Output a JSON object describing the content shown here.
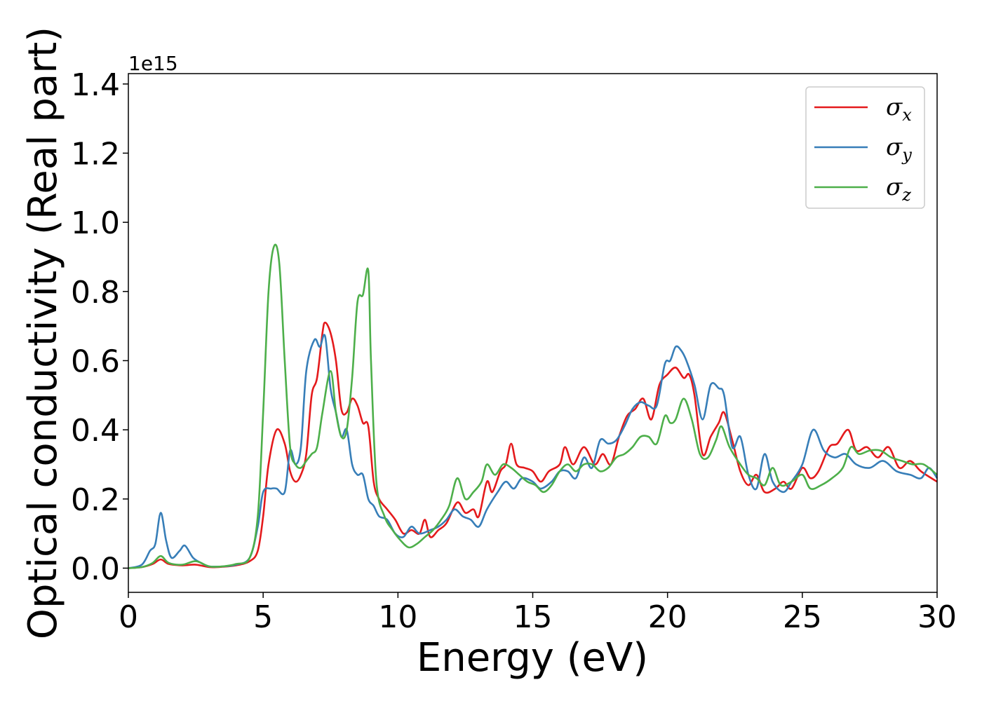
{
  "chart_data": {
    "type": "line",
    "title": "",
    "xlabel": "Energy (eV)",
    "ylabel": "Optical conductivity (Real part)",
    "y_offset_label": "1e15",
    "xlim": [
      0,
      30
    ],
    "ylim": [
      -0.07,
      1.43
    ],
    "xticks": [
      0,
      5,
      10,
      15,
      20,
      25,
      30
    ],
    "xtick_labels": [
      "0",
      "5",
      "10",
      "15",
      "20",
      "25",
      "30"
    ],
    "yticks": [
      0.0,
      0.2,
      0.4,
      0.6,
      0.8,
      1.0,
      1.2,
      1.4
    ],
    "ytick_labels": [
      "0.0",
      "0.2",
      "0.4",
      "0.6",
      "0.8",
      "1.0",
      "1.2",
      "1.4"
    ],
    "grid": false,
    "legend_position": "top-right",
    "series": [
      {
        "name": "σ_x",
        "symbol": "σ",
        "sub": "x",
        "color": "#e41a1c",
        "points": [
          [
            0,
            0
          ],
          [
            0.5,
            0.003
          ],
          [
            0.9,
            0.012
          ],
          [
            1.2,
            0.025
          ],
          [
            1.5,
            0.012
          ],
          [
            2,
            0.008
          ],
          [
            2.5,
            0.01
          ],
          [
            3,
            0.003
          ],
          [
            3.5,
            0.004
          ],
          [
            4,
            0.008
          ],
          [
            4.5,
            0.02
          ],
          [
            4.8,
            0.05
          ],
          [
            5,
            0.15
          ],
          [
            5.2,
            0.3
          ],
          [
            5.5,
            0.4
          ],
          [
            5.8,
            0.36
          ],
          [
            6,
            0.28
          ],
          [
            6.2,
            0.25
          ],
          [
            6.4,
            0.27
          ],
          [
            6.6,
            0.33
          ],
          [
            6.8,
            0.5
          ],
          [
            7,
            0.55
          ],
          [
            7.2,
            0.68
          ],
          [
            7.3,
            0.71
          ],
          [
            7.5,
            0.68
          ],
          [
            7.7,
            0.6
          ],
          [
            7.9,
            0.46
          ],
          [
            8.1,
            0.45
          ],
          [
            8.3,
            0.49
          ],
          [
            8.5,
            0.47
          ],
          [
            8.7,
            0.42
          ],
          [
            8.9,
            0.41
          ],
          [
            9.1,
            0.25
          ],
          [
            9.3,
            0.2
          ],
          [
            9.6,
            0.17
          ],
          [
            9.9,
            0.14
          ],
          [
            10.2,
            0.1
          ],
          [
            10.5,
            0.11
          ],
          [
            10.8,
            0.1
          ],
          [
            11.0,
            0.14
          ],
          [
            11.2,
            0.09
          ],
          [
            11.5,
            0.11
          ],
          [
            11.8,
            0.13
          ],
          [
            12.2,
            0.19
          ],
          [
            12.5,
            0.16
          ],
          [
            12.8,
            0.17
          ],
          [
            13.0,
            0.15
          ],
          [
            13.3,
            0.25
          ],
          [
            13.5,
            0.22
          ],
          [
            13.8,
            0.28
          ],
          [
            14.0,
            0.3
          ],
          [
            14.2,
            0.36
          ],
          [
            14.4,
            0.3
          ],
          [
            14.7,
            0.29
          ],
          [
            15.0,
            0.28
          ],
          [
            15.3,
            0.25
          ],
          [
            15.6,
            0.28
          ],
          [
            16.0,
            0.3
          ],
          [
            16.2,
            0.35
          ],
          [
            16.5,
            0.3
          ],
          [
            16.9,
            0.35
          ],
          [
            17.3,
            0.3
          ],
          [
            17.6,
            0.33
          ],
          [
            17.9,
            0.3
          ],
          [
            18.2,
            0.38
          ],
          [
            18.5,
            0.44
          ],
          [
            18.8,
            0.46
          ],
          [
            19.1,
            0.49
          ],
          [
            19.4,
            0.43
          ],
          [
            19.7,
            0.53
          ],
          [
            20.0,
            0.56
          ],
          [
            20.3,
            0.58
          ],
          [
            20.6,
            0.55
          ],
          [
            20.8,
            0.56
          ],
          [
            21.0,
            0.5
          ],
          [
            21.3,
            0.33
          ],
          [
            21.6,
            0.38
          ],
          [
            21.9,
            0.42
          ],
          [
            22.1,
            0.45
          ],
          [
            22.4,
            0.37
          ],
          [
            22.7,
            0.28
          ],
          [
            23.0,
            0.24
          ],
          [
            23.3,
            0.27
          ],
          [
            23.6,
            0.22
          ],
          [
            24.0,
            0.23
          ],
          [
            24.3,
            0.25
          ],
          [
            24.6,
            0.23
          ],
          [
            25.0,
            0.29
          ],
          [
            25.3,
            0.26
          ],
          [
            25.6,
            0.28
          ],
          [
            26.0,
            0.35
          ],
          [
            26.3,
            0.36
          ],
          [
            26.7,
            0.4
          ],
          [
            27.0,
            0.34
          ],
          [
            27.4,
            0.35
          ],
          [
            27.8,
            0.32
          ],
          [
            28.2,
            0.35
          ],
          [
            28.6,
            0.29
          ],
          [
            29.0,
            0.31
          ],
          [
            29.4,
            0.28
          ],
          [
            30.0,
            0.25
          ]
        ]
      },
      {
        "name": "σ_y",
        "symbol": "σ",
        "sub": "y",
        "color": "#377eb8",
        "points": [
          [
            0,
            0
          ],
          [
            0.5,
            0.01
          ],
          [
            0.8,
            0.05
          ],
          [
            1.0,
            0.07
          ],
          [
            1.2,
            0.16
          ],
          [
            1.4,
            0.08
          ],
          [
            1.6,
            0.03
          ],
          [
            1.9,
            0.05
          ],
          [
            2.1,
            0.065
          ],
          [
            2.4,
            0.03
          ],
          [
            2.7,
            0.015
          ],
          [
            3.0,
            0.005
          ],
          [
            3.5,
            0.005
          ],
          [
            4.0,
            0.01
          ],
          [
            4.5,
            0.03
          ],
          [
            4.8,
            0.12
          ],
          [
            5.0,
            0.22
          ],
          [
            5.3,
            0.23
          ],
          [
            5.5,
            0.23
          ],
          [
            5.8,
            0.22
          ],
          [
            6.0,
            0.34
          ],
          [
            6.2,
            0.3
          ],
          [
            6.4,
            0.35
          ],
          [
            6.6,
            0.57
          ],
          [
            6.9,
            0.66
          ],
          [
            7.1,
            0.64
          ],
          [
            7.3,
            0.67
          ],
          [
            7.5,
            0.52
          ],
          [
            7.7,
            0.45
          ],
          [
            7.9,
            0.38
          ],
          [
            8.1,
            0.4
          ],
          [
            8.3,
            0.3
          ],
          [
            8.5,
            0.27
          ],
          [
            8.7,
            0.27
          ],
          [
            8.9,
            0.2
          ],
          [
            9.1,
            0.18
          ],
          [
            9.3,
            0.15
          ],
          [
            9.6,
            0.14
          ],
          [
            9.9,
            0.1
          ],
          [
            10.2,
            0.09
          ],
          [
            10.5,
            0.12
          ],
          [
            10.8,
            0.1
          ],
          [
            11.2,
            0.11
          ],
          [
            11.5,
            0.12
          ],
          [
            11.8,
            0.14
          ],
          [
            12.1,
            0.17
          ],
          [
            12.4,
            0.15
          ],
          [
            12.7,
            0.14
          ],
          [
            13.0,
            0.12
          ],
          [
            13.3,
            0.17
          ],
          [
            13.7,
            0.22
          ],
          [
            14.0,
            0.25
          ],
          [
            14.3,
            0.23
          ],
          [
            14.6,
            0.26
          ],
          [
            15.0,
            0.25
          ],
          [
            15.3,
            0.23
          ],
          [
            15.7,
            0.25
          ],
          [
            16.0,
            0.28
          ],
          [
            16.3,
            0.28
          ],
          [
            16.6,
            0.26
          ],
          [
            16.9,
            0.32
          ],
          [
            17.2,
            0.29
          ],
          [
            17.5,
            0.37
          ],
          [
            17.8,
            0.36
          ],
          [
            18.1,
            0.37
          ],
          [
            18.4,
            0.41
          ],
          [
            18.7,
            0.46
          ],
          [
            19.0,
            0.48
          ],
          [
            19.3,
            0.47
          ],
          [
            19.6,
            0.47
          ],
          [
            19.9,
            0.59
          ],
          [
            20.1,
            0.6
          ],
          [
            20.3,
            0.64
          ],
          [
            20.5,
            0.63
          ],
          [
            20.7,
            0.6
          ],
          [
            21.0,
            0.53
          ],
          [
            21.3,
            0.43
          ],
          [
            21.6,
            0.53
          ],
          [
            21.9,
            0.52
          ],
          [
            22.1,
            0.5
          ],
          [
            22.4,
            0.35
          ],
          [
            22.7,
            0.38
          ],
          [
            23.0,
            0.27
          ],
          [
            23.3,
            0.23
          ],
          [
            23.6,
            0.33
          ],
          [
            23.9,
            0.25
          ],
          [
            24.3,
            0.22
          ],
          [
            24.6,
            0.25
          ],
          [
            25.0,
            0.3
          ],
          [
            25.4,
            0.4
          ],
          [
            25.8,
            0.34
          ],
          [
            26.2,
            0.32
          ],
          [
            26.6,
            0.33
          ],
          [
            27.0,
            0.3
          ],
          [
            27.5,
            0.29
          ],
          [
            28.0,
            0.31
          ],
          [
            28.5,
            0.28
          ],
          [
            29.0,
            0.27
          ],
          [
            29.4,
            0.26
          ],
          [
            29.7,
            0.29
          ],
          [
            30.0,
            0.26
          ]
        ]
      },
      {
        "name": "σ_z",
        "symbol": "σ",
        "sub": "z",
        "color": "#4daf4a",
        "points": [
          [
            0,
            0
          ],
          [
            0.5,
            0.003
          ],
          [
            0.9,
            0.015
          ],
          [
            1.2,
            0.035
          ],
          [
            1.5,
            0.015
          ],
          [
            2.0,
            0.01
          ],
          [
            2.5,
            0.02
          ],
          [
            3.0,
            0.005
          ],
          [
            3.5,
            0.005
          ],
          [
            4.0,
            0.012
          ],
          [
            4.5,
            0.03
          ],
          [
            4.8,
            0.15
          ],
          [
            5.0,
            0.45
          ],
          [
            5.2,
            0.8
          ],
          [
            5.4,
            0.93
          ],
          [
            5.6,
            0.88
          ],
          [
            5.8,
            0.6
          ],
          [
            6.0,
            0.35
          ],
          [
            6.2,
            0.3
          ],
          [
            6.4,
            0.29
          ],
          [
            6.6,
            0.31
          ],
          [
            6.8,
            0.33
          ],
          [
            7.0,
            0.35
          ],
          [
            7.2,
            0.45
          ],
          [
            7.5,
            0.57
          ],
          [
            7.7,
            0.45
          ],
          [
            7.9,
            0.38
          ],
          [
            8.1,
            0.4
          ],
          [
            8.3,
            0.55
          ],
          [
            8.5,
            0.77
          ],
          [
            8.7,
            0.79
          ],
          [
            8.9,
            0.86
          ],
          [
            9.0,
            0.6
          ],
          [
            9.2,
            0.25
          ],
          [
            9.5,
            0.15
          ],
          [
            9.8,
            0.11
          ],
          [
            10.1,
            0.08
          ],
          [
            10.4,
            0.06
          ],
          [
            10.7,
            0.07
          ],
          [
            11.0,
            0.09
          ],
          [
            11.3,
            0.11
          ],
          [
            11.6,
            0.14
          ],
          [
            11.9,
            0.18
          ],
          [
            12.2,
            0.26
          ],
          [
            12.5,
            0.2
          ],
          [
            12.8,
            0.22
          ],
          [
            13.1,
            0.25
          ],
          [
            13.3,
            0.3
          ],
          [
            13.6,
            0.27
          ],
          [
            13.9,
            0.3
          ],
          [
            14.2,
            0.29
          ],
          [
            14.5,
            0.27
          ],
          [
            14.8,
            0.25
          ],
          [
            15.1,
            0.24
          ],
          [
            15.4,
            0.22
          ],
          [
            15.7,
            0.24
          ],
          [
            16.0,
            0.28
          ],
          [
            16.3,
            0.3
          ],
          [
            16.6,
            0.28
          ],
          [
            16.9,
            0.3
          ],
          [
            17.2,
            0.3
          ],
          [
            17.5,
            0.28
          ],
          [
            17.8,
            0.29
          ],
          [
            18.1,
            0.32
          ],
          [
            18.4,
            0.33
          ],
          [
            18.7,
            0.35
          ],
          [
            19.0,
            0.38
          ],
          [
            19.3,
            0.38
          ],
          [
            19.6,
            0.36
          ],
          [
            19.9,
            0.44
          ],
          [
            20.1,
            0.42
          ],
          [
            20.3,
            0.43
          ],
          [
            20.6,
            0.49
          ],
          [
            20.9,
            0.43
          ],
          [
            21.2,
            0.33
          ],
          [
            21.5,
            0.32
          ],
          [
            21.8,
            0.37
          ],
          [
            22.0,
            0.41
          ],
          [
            22.3,
            0.35
          ],
          [
            22.7,
            0.3
          ],
          [
            23.0,
            0.27
          ],
          [
            23.3,
            0.26
          ],
          [
            23.6,
            0.24
          ],
          [
            23.9,
            0.29
          ],
          [
            24.2,
            0.24
          ],
          [
            24.6,
            0.25
          ],
          [
            25.0,
            0.27
          ],
          [
            25.3,
            0.23
          ],
          [
            25.7,
            0.24
          ],
          [
            26.1,
            0.26
          ],
          [
            26.5,
            0.29
          ],
          [
            26.8,
            0.35
          ],
          [
            27.1,
            0.33
          ],
          [
            27.5,
            0.34
          ],
          [
            27.9,
            0.34
          ],
          [
            28.3,
            0.32
          ],
          [
            28.7,
            0.31
          ],
          [
            29.1,
            0.3
          ],
          [
            29.5,
            0.3
          ],
          [
            30.0,
            0.27
          ]
        ]
      }
    ]
  }
}
